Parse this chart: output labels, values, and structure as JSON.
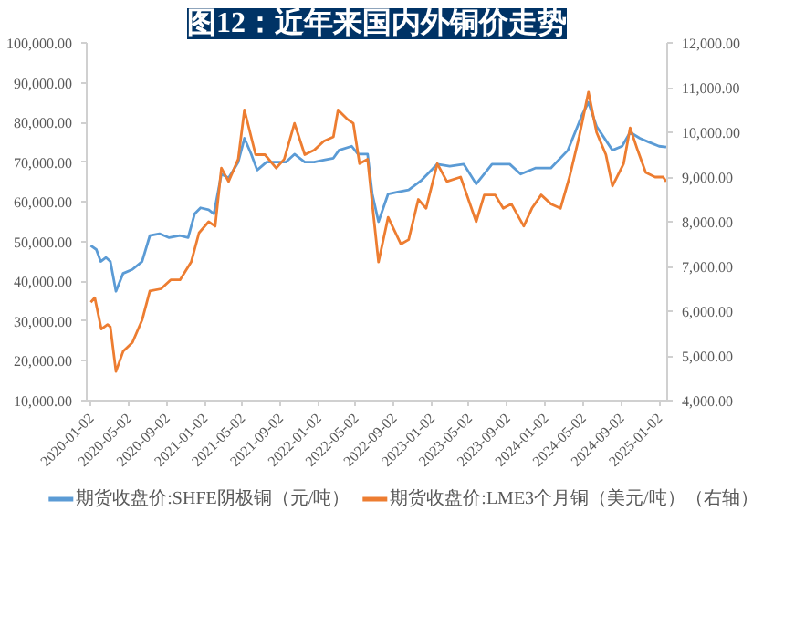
{
  "chart_data": {
    "type": "line",
    "title": "图12：近年来国内外铜价走势",
    "xlim": [
      "2019-12-20",
      "2025-01-28"
    ],
    "xticks": [
      "2020-01-02",
      "2020-05-02",
      "2020-09-02",
      "2021-01-02",
      "2021-05-02",
      "2021-09-02",
      "2022-01-02",
      "2022-05-02",
      "2022-09-02",
      "2023-01-02",
      "2023-05-02",
      "2023-09-02",
      "2024-01-02",
      "2024-05-02",
      "2024-09-02",
      "2025-01-02"
    ],
    "ylim": [
      10000,
      100000
    ],
    "yticks": [
      {
        "value": 10000,
        "label": "10,000.00"
      },
      {
        "value": 20000,
        "label": "20,000.00"
      },
      {
        "value": 30000,
        "label": "30,000.00"
      },
      {
        "value": 40000,
        "label": "40,000.00"
      },
      {
        "value": 50000,
        "label": "50,000.00"
      },
      {
        "value": 60000,
        "label": "60,000.00"
      },
      {
        "value": 70000,
        "label": "70,000.00"
      },
      {
        "value": 80000,
        "label": "80,000.00"
      },
      {
        "value": 90000,
        "label": "90,000.00"
      },
      {
        "value": 100000,
        "label": "100,000.00"
      }
    ],
    "y2lim": [
      4000,
      12000
    ],
    "y2ticks": [
      {
        "value": 4000,
        "label": "4,000.00"
      },
      {
        "value": 5000,
        "label": "5,000.00"
      },
      {
        "value": 6000,
        "label": "6,000.00"
      },
      {
        "value": 7000,
        "label": "7,000.00"
      },
      {
        "value": 8000,
        "label": "8,000.00"
      },
      {
        "value": 9000,
        "label": "9,000.00"
      },
      {
        "value": 10000,
        "label": "10,000.00"
      },
      {
        "value": 11000,
        "label": "11,000.00"
      },
      {
        "value": 12000,
        "label": "12,000.00"
      }
    ],
    "grid": false,
    "legend": "bottom",
    "series": [
      {
        "name": "期货收盘价:SHFE阴极铜（元/吨）",
        "color": "#5b9bd5",
        "x": [
          "2020-01-02",
          "2020-01-20",
          "2020-02-03",
          "2020-02-20",
          "2020-03-05",
          "2020-03-23",
          "2020-04-15",
          "2020-05-15",
          "2020-06-15",
          "2020-07-10",
          "2020-08-10",
          "2020-09-10",
          "2020-10-15",
          "2020-11-10",
          "2020-12-01",
          "2020-12-20",
          "2021-01-15",
          "2021-02-01",
          "2021-02-25",
          "2021-03-20",
          "2021-04-20",
          "2021-05-10",
          "2021-06-01",
          "2021-06-20",
          "2021-07-20",
          "2021-08-20",
          "2021-09-20",
          "2021-10-18",
          "2021-11-20",
          "2021-12-20",
          "2022-01-20",
          "2022-02-20",
          "2022-03-10",
          "2022-04-20",
          "2022-05-10",
          "2022-06-10",
          "2022-06-25",
          "2022-07-15",
          "2022-08-15",
          "2022-09-15",
          "2022-10-20",
          "2022-12-01",
          "2023-01-20",
          "2023-03-01",
          "2023-04-15",
          "2023-05-25",
          "2023-07-15",
          "2023-09-10",
          "2023-10-15",
          "2023-12-01",
          "2024-01-20",
          "2024-03-15",
          "2024-04-30",
          "2024-05-20",
          "2024-06-15",
          "2024-08-05",
          "2024-09-05",
          "2024-10-01",
          "2024-11-01",
          "2024-12-01",
          "2025-01-02",
          "2025-01-25"
        ],
        "values": [
          49000,
          48000,
          45000,
          46000,
          45000,
          37500,
          42000,
          43000,
          45000,
          51500,
          52000,
          51000,
          51500,
          51000,
          57000,
          58500,
          58000,
          57000,
          67000,
          66000,
          70000,
          76000,
          72000,
          68000,
          70000,
          70000,
          70000,
          72000,
          70000,
          70000,
          70500,
          71000,
          73000,
          74000,
          72000,
          72000,
          62000,
          55000,
          62000,
          62500,
          63000,
          65500,
          69500,
          69000,
          69500,
          64500,
          69500,
          69500,
          67000,
          68500,
          68500,
          73000,
          82000,
          85000,
          79000,
          73000,
          74000,
          77500,
          76000,
          75000,
          74000,
          73800
        ]
      },
      {
        "name": "期货收盘价:LME3个月铜（美元/吨）（右轴）",
        "color": "#ed7d31",
        "axis": "y2",
        "x": [
          "2020-01-02",
          "2020-01-15",
          "2020-02-05",
          "2020-02-25",
          "2020-03-05",
          "2020-03-23",
          "2020-04-15",
          "2020-05-15",
          "2020-06-15",
          "2020-07-10",
          "2020-08-15",
          "2020-09-15",
          "2020-10-15",
          "2020-11-20",
          "2020-12-15",
          "2021-01-15",
          "2021-02-05",
          "2021-02-25",
          "2021-03-20",
          "2021-04-20",
          "2021-05-10",
          "2021-06-15",
          "2021-07-15",
          "2021-08-20",
          "2021-09-15",
          "2021-10-18",
          "2021-11-20",
          "2021-12-20",
          "2022-01-20",
          "2022-02-20",
          "2022-03-07",
          "2022-04-05",
          "2022-04-25",
          "2022-05-15",
          "2022-06-10",
          "2022-06-25",
          "2022-07-15",
          "2022-08-15",
          "2022-09-25",
          "2022-10-20",
          "2022-11-20",
          "2022-12-15",
          "2023-01-20",
          "2023-02-20",
          "2023-04-05",
          "2023-05-25",
          "2023-06-20",
          "2023-07-25",
          "2023-08-20",
          "2023-09-15",
          "2023-10-25",
          "2023-11-20",
          "2023-12-20",
          "2024-01-20",
          "2024-02-20",
          "2024-03-20",
          "2024-04-20",
          "2024-05-20",
          "2024-06-15",
          "2024-07-15",
          "2024-08-05",
          "2024-09-10",
          "2024-10-01",
          "2024-10-25",
          "2024-11-20",
          "2024-12-20",
          "2025-01-15",
          "2025-01-25"
        ],
        "values": [
          6200,
          6300,
          5600,
          5700,
          5650,
          4650,
          5100,
          5300,
          5800,
          6450,
          6500,
          6700,
          6700,
          7100,
          7750,
          8000,
          7900,
          9200,
          8900,
          9400,
          10500,
          9500,
          9500,
          9200,
          9400,
          10200,
          9500,
          9600,
          9800,
          9900,
          10500,
          10300,
          10200,
          9300,
          9400,
          8400,
          7100,
          8100,
          7500,
          7600,
          8500,
          8300,
          9300,
          8900,
          9000,
          8000,
          8600,
          8600,
          8300,
          8400,
          7900,
          8300,
          8600,
          8400,
          8300,
          9000,
          9900,
          10900,
          10000,
          9500,
          8800,
          9300,
          10100,
          9600,
          9100,
          9000,
          9000,
          8900
        ]
      }
    ]
  }
}
